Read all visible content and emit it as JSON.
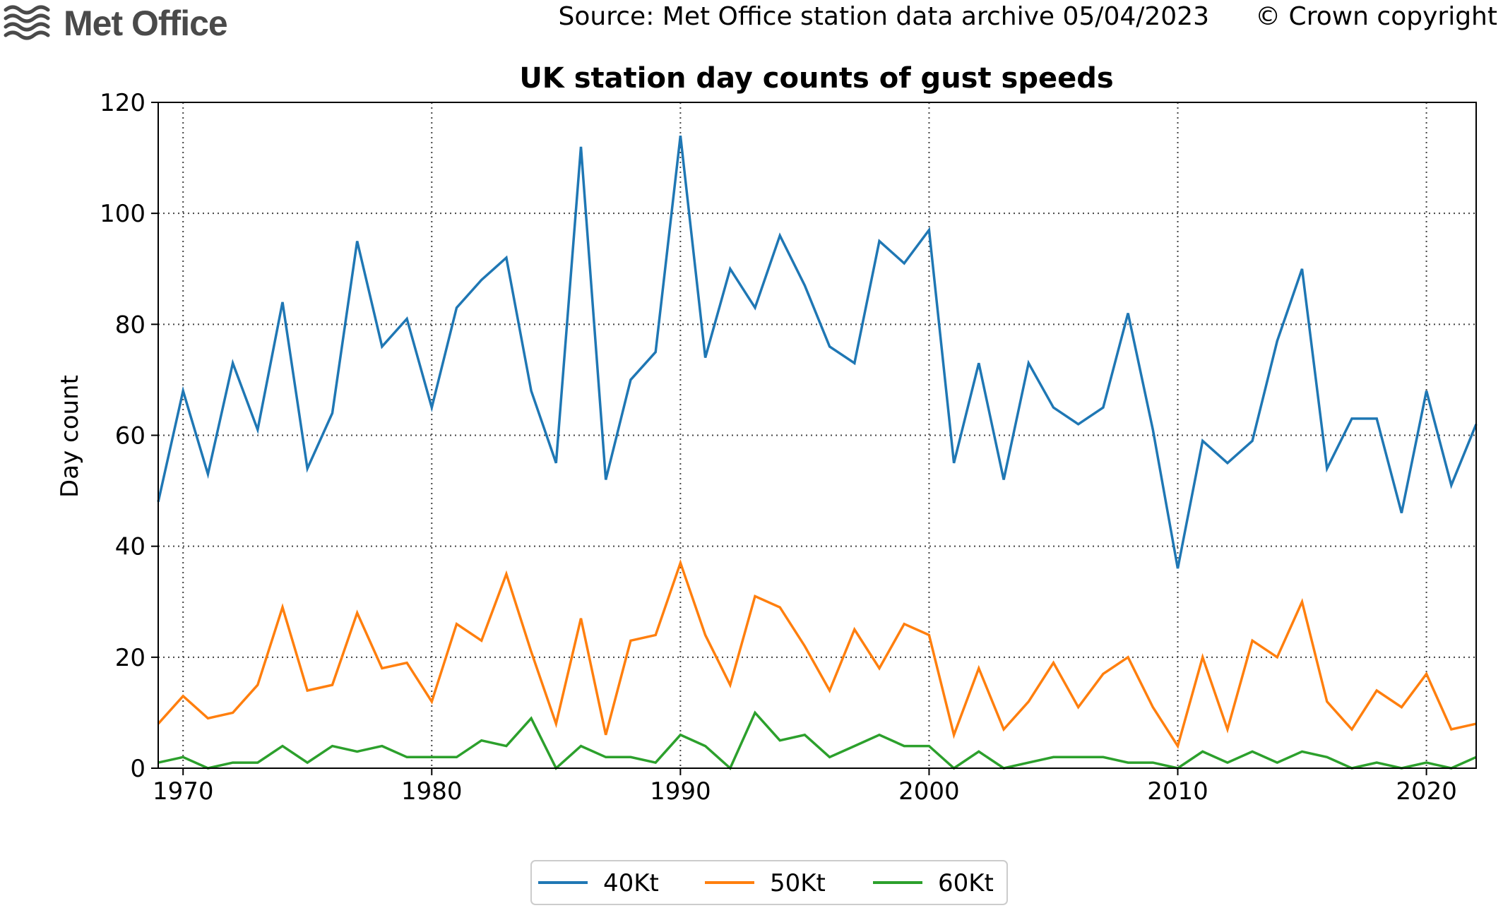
{
  "header": {
    "logo_text": "Met Office",
    "source": "Source: Met Office station data archive 05/04/2023",
    "copyright": "© Crown copyright"
  },
  "colors": {
    "series_40": "#1f77b4",
    "series_50": "#ff7f0e",
    "series_60": "#2ca02c",
    "logo": "#4a4a4a"
  },
  "chart_data": {
    "type": "line",
    "title": "UK station day counts of gust speeds",
    "xlabel": "",
    "ylabel": "Day count",
    "xlim": [
      1969,
      2022
    ],
    "ylim": [
      0,
      120
    ],
    "xticks": [
      1970,
      1980,
      1990,
      2000,
      2010,
      2020
    ],
    "yticks": [
      0,
      20,
      40,
      60,
      80,
      100,
      120
    ],
    "grid": true,
    "legend_position": "bottom-center",
    "x": [
      1969,
      1970,
      1971,
      1972,
      1973,
      1974,
      1975,
      1976,
      1977,
      1978,
      1979,
      1980,
      1981,
      1982,
      1983,
      1984,
      1985,
      1986,
      1987,
      1988,
      1989,
      1990,
      1991,
      1992,
      1993,
      1994,
      1995,
      1996,
      1997,
      1998,
      1999,
      2000,
      2001,
      2002,
      2003,
      2004,
      2005,
      2006,
      2007,
      2008,
      2009,
      2010,
      2011,
      2012,
      2013,
      2014,
      2015,
      2016,
      2017,
      2018,
      2019,
      2020,
      2021,
      2022
    ],
    "series": [
      {
        "name": "40Kt",
        "values": [
          48,
          68,
          53,
          73,
          61,
          84,
          54,
          64,
          95,
          76,
          81,
          65,
          83,
          88,
          92,
          68,
          55,
          112,
          52,
          70,
          75,
          114,
          74,
          90,
          83,
          96,
          87,
          76,
          73,
          95,
          91,
          97,
          55,
          73,
          52,
          73,
          65,
          62,
          65,
          82,
          61,
          36,
          59,
          55,
          59,
          77,
          90,
          54,
          63,
          63,
          46,
          68,
          51,
          62
        ]
      },
      {
        "name": "50Kt",
        "values": [
          8,
          13,
          9,
          10,
          15,
          29,
          14,
          15,
          28,
          18,
          19,
          12,
          26,
          23,
          35,
          21,
          8,
          27,
          6,
          23,
          24,
          37,
          24,
          15,
          31,
          29,
          22,
          14,
          25,
          18,
          26,
          24,
          6,
          18,
          7,
          12,
          19,
          11,
          17,
          20,
          11,
          4,
          20,
          7,
          23,
          20,
          30,
          12,
          7,
          14,
          11,
          17,
          7,
          8
        ]
      },
      {
        "name": "60Kt",
        "values": [
          1,
          2,
          0,
          1,
          1,
          4,
          1,
          4,
          3,
          4,
          2,
          2,
          2,
          5,
          4,
          9,
          0,
          4,
          2,
          2,
          1,
          6,
          4,
          0,
          10,
          5,
          6,
          2,
          4,
          6,
          4,
          4,
          0,
          3,
          0,
          1,
          2,
          2,
          2,
          1,
          1,
          0,
          3,
          1,
          3,
          1,
          3,
          2,
          0,
          1,
          0,
          1,
          0,
          2
        ]
      }
    ]
  }
}
